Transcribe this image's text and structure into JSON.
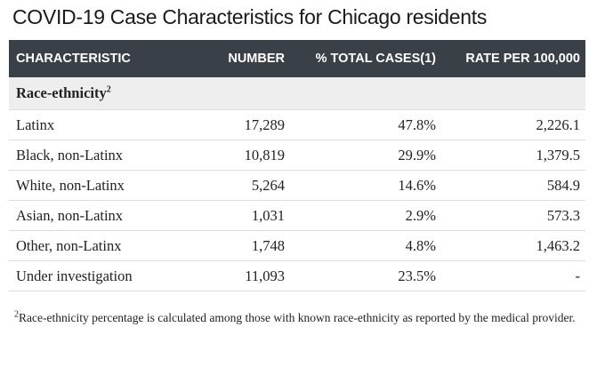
{
  "title": "COVID-19 Case Characteristics for Chicago residents",
  "columns": [
    "CHARACTERISTIC",
    "NUMBER",
    "% TOTAL CASES(1)",
    "RATE PER 100,000"
  ],
  "group": {
    "label": "Race-ethnicity",
    "sup": "2"
  },
  "rows": [
    {
      "characteristic": "Latinx",
      "number": "17,289",
      "pct": "47.8%",
      "rate": "2,226.1"
    },
    {
      "characteristic": "Black, non-Latinx",
      "number": "10,819",
      "pct": "29.9%",
      "rate": "1,379.5"
    },
    {
      "characteristic": "White, non-Latinx",
      "number": "5,264",
      "pct": "14.6%",
      "rate": "584.9"
    },
    {
      "characteristic": "Asian, non-Latinx",
      "number": "1,031",
      "pct": "2.9%",
      "rate": "573.3"
    },
    {
      "characteristic": "Other, non-Latinx",
      "number": "1,748",
      "pct": "4.8%",
      "rate": "1,463.2"
    },
    {
      "characteristic": "Under investigation",
      "number": "11,093",
      "pct": "23.5%",
      "rate": "-"
    }
  ],
  "footnote": {
    "sup": "2",
    "text": "Race-ethnicity percentage is calculated among those with known race-ethnicity as reported by the medical provider."
  }
}
